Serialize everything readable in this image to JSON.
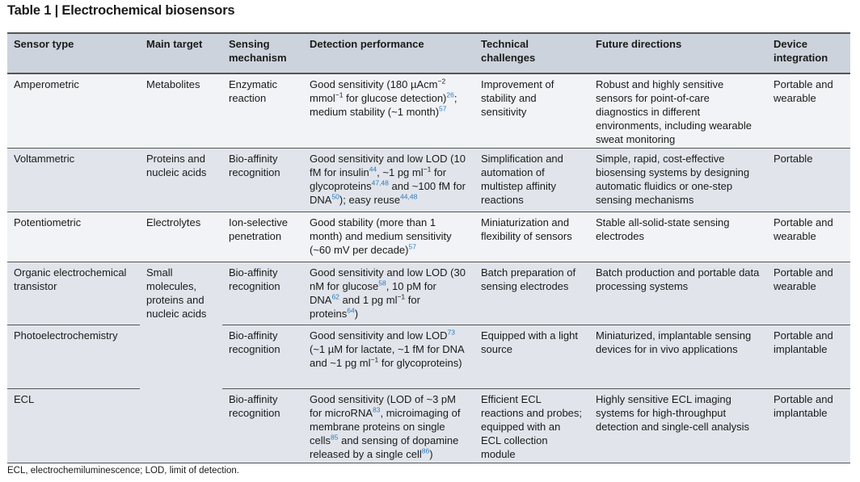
{
  "title": "Table 1 | Electrochemical biosensors",
  "headers": [
    "Sensor type",
    "Main target",
    "Sensing mechanism",
    "Detection performance",
    "Technical challenges",
    "Future directions",
    "Device integration"
  ],
  "rows": [
    {
      "sensor": "Amperometric",
      "target": "Metabolites",
      "mechanism": "Enzymatic reaction",
      "detection": [
        {
          "t": "Good sensitivity (180 µAcm"
        },
        {
          "sup": "−2"
        },
        {
          "t": " mmol"
        },
        {
          "sup": "−1"
        },
        {
          "t": " for glucose detection)"
        },
        {
          "ref": "26"
        },
        {
          "t": "; medium stability (~1 month)"
        },
        {
          "ref": "57"
        }
      ],
      "challenges": "Improvement of stability and sensitivity",
      "future": "Robust and highly sensitive sensors for point-of-care diagnostics in different environments, including wearable sweat monitoring",
      "integration": "Portable and wearable"
    },
    {
      "sensor": "Voltammetric",
      "target": "Proteins and nucleic acids",
      "mechanism": "Bio-affinity recognition",
      "detection": [
        {
          "t": "Good sensitivity and low LOD (10 fM for insulin"
        },
        {
          "ref": "44"
        },
        {
          "t": ", ~1 pg ml"
        },
        {
          "sup": "−1"
        },
        {
          "t": " for glycoproteins"
        },
        {
          "ref": "47,48"
        },
        {
          "t": " and ~100 fM for DNA"
        },
        {
          "ref": "50"
        },
        {
          "t": "); easy reuse"
        },
        {
          "ref": "44,48"
        }
      ],
      "challenges": "Simplification and automation of multistep affinity reactions",
      "future": "Simple, rapid, cost-effective biosensing systems by designing automatic fluidics or one-step sensing mechanisms",
      "integration": "Portable"
    },
    {
      "sensor": "Potentiometric",
      "target": "Electrolytes",
      "mechanism": "Ion-selective penetration",
      "detection": [
        {
          "t": "Good stability (more than 1 month) and medium sensitivity (~60 mV per decade)"
        },
        {
          "ref": "57"
        }
      ],
      "challenges": "Miniaturization and flexibility of sensors",
      "future": "Stable all-solid-state sensing electrodes",
      "integration": "Portable and wearable"
    },
    {
      "sensor": "Organic electrochemical transistor",
      "target": "Small molecules, proteins and nucleic acids",
      "mechanism": "Bio-affinity recognition",
      "detection": [
        {
          "t": "Good sensitivity and low LOD (30 nM for glucose"
        },
        {
          "ref": "58"
        },
        {
          "t": ", 10 pM for DNA"
        },
        {
          "ref": "62"
        },
        {
          "t": " and 1 pg ml"
        },
        {
          "sup": "−1"
        },
        {
          "t": " for proteins"
        },
        {
          "ref": "64"
        },
        {
          "t": ")"
        }
      ],
      "challenges": "Batch preparation of sensing electrodes",
      "future": "Batch production and portable data processing systems",
      "integration": "Portable and wearable"
    },
    {
      "sensor": "Photoelectrochemistry",
      "target": "",
      "mechanism": "Bio-affinity recognition",
      "detection": [
        {
          "t": "Good sensitivity and low LOD"
        },
        {
          "ref": "73"
        },
        {
          "t": " (~1 µM for lactate, ~1 fM for DNA and ~1 pg ml"
        },
        {
          "sup": "−1"
        },
        {
          "t": " for glycoproteins)"
        }
      ],
      "challenges": "Equipped with a light source",
      "future": "Miniaturized, implantable sensing devices for in vivo applications",
      "integration": "Portable and implantable"
    },
    {
      "sensor": "ECL",
      "target": "",
      "mechanism": "Bio-affinity recognition",
      "detection": [
        {
          "t": "Good sensitivity (LOD of ~3 pM for microRNA"
        },
        {
          "ref": "83"
        },
        {
          "t": ", microimaging of membrane proteins on single cells"
        },
        {
          "ref": "85"
        },
        {
          "t": " and sensing of dopamine released by a single cell"
        },
        {
          "ref": "86"
        },
        {
          "t": ")"
        }
      ],
      "challenges": "Efficient ECL reactions and probes; equipped with an ECL collection module",
      "future": "Highly sensitive ECL imaging systems for high-throughput detection and single-cell analysis",
      "integration": "Portable and implantable"
    }
  ],
  "footnote": "ECL, electrochemiluminescence; LOD, limit of detection.",
  "colors": {
    "header_bg": "#cdd3dc",
    "row_light": "#f1f3f6",
    "row_dark": "#e1e5eb",
    "reference_link": "#2a7bc0"
  }
}
